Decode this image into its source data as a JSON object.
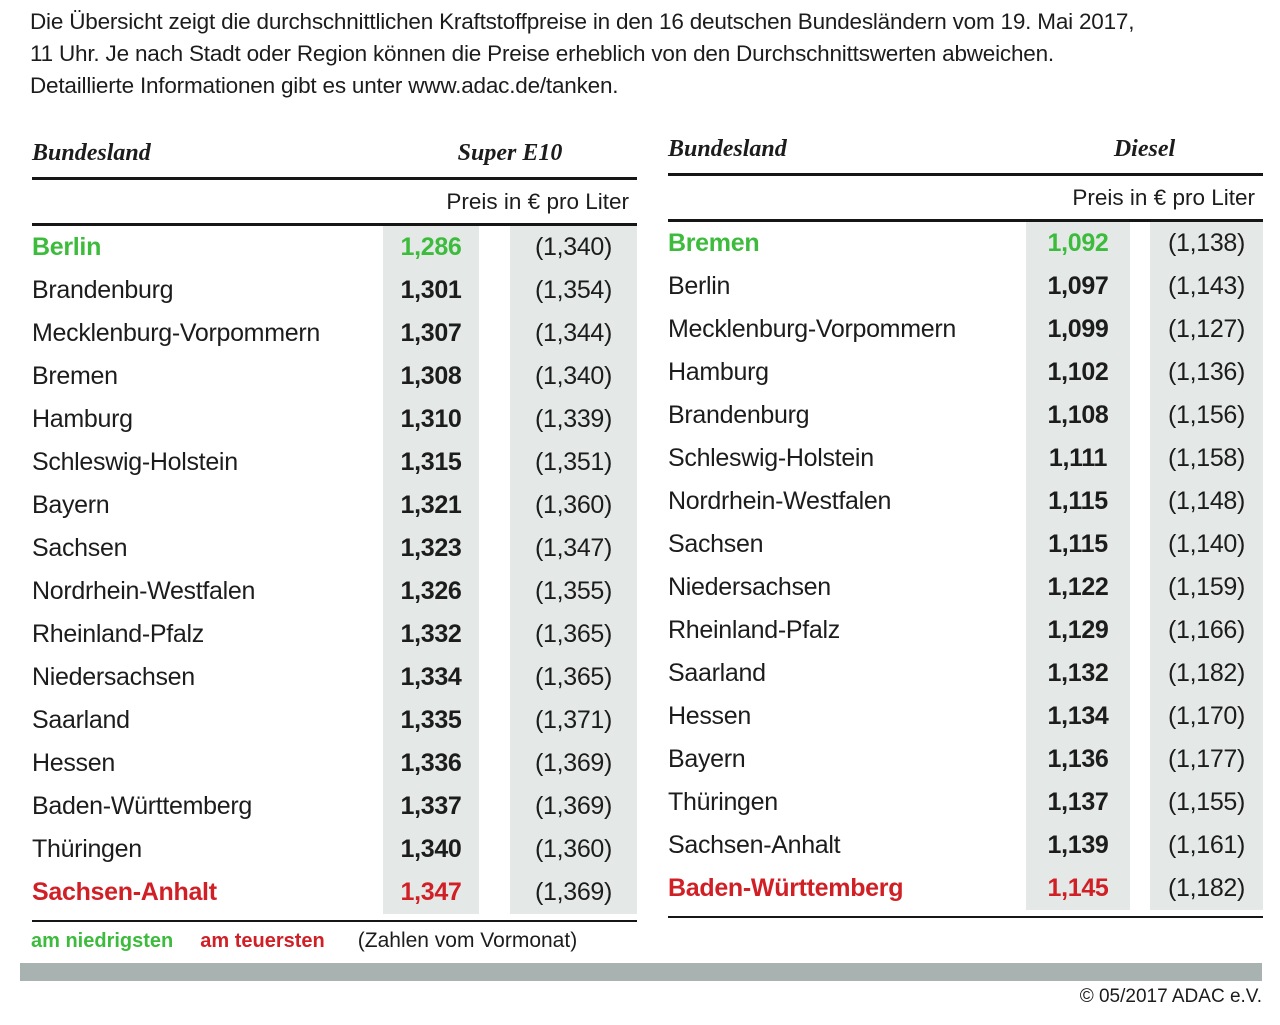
{
  "intro": {
    "lines": [
      "Die Übersicht zeigt die durchschnittlichen Kraftstoffpreise in den 16 deutschen Bundesländern vom 19. Mai 2017,",
      "11 Uhr. Je nach Stadt oder Region können die Preise erheblich von den Durchschnittswerten abweichen.",
      "Detaillierte Informationen gibt es unter www.adac.de/tanken."
    ]
  },
  "chart_data": [
    {
      "type": "table",
      "region_header": "Bundesland",
      "fuel_header": "Super E10",
      "unit_header": "Preis in € pro Liter",
      "rows": [
        {
          "name": "Berlin",
          "price": "1,286",
          "prev": "(1,340)",
          "highlight": "lowest"
        },
        {
          "name": "Brandenburg",
          "price": "1,301",
          "prev": "(1,354)",
          "highlight": null
        },
        {
          "name": "Mecklenburg-Vorpommern",
          "price": "1,307",
          "prev": "(1,344)",
          "highlight": null
        },
        {
          "name": "Bremen",
          "price": "1,308",
          "prev": "(1,340)",
          "highlight": null
        },
        {
          "name": "Hamburg",
          "price": "1,310",
          "prev": "(1,339)",
          "highlight": null
        },
        {
          "name": "Schleswig-Holstein",
          "price": "1,315",
          "prev": "(1,351)",
          "highlight": null
        },
        {
          "name": "Bayern",
          "price": "1,321",
          "prev": "(1,360)",
          "highlight": null
        },
        {
          "name": "Sachsen",
          "price": "1,323",
          "prev": "(1,347)",
          "highlight": null
        },
        {
          "name": "Nordrhein-Westfalen",
          "price": "1,326",
          "prev": "(1,355)",
          "highlight": null
        },
        {
          "name": "Rheinland-Pfalz",
          "price": "1,332",
          "prev": "(1,365)",
          "highlight": null
        },
        {
          "name": "Niedersachsen",
          "price": "1,334",
          "prev": "(1,365)",
          "highlight": null
        },
        {
          "name": "Saarland",
          "price": "1,335",
          "prev": "(1,371)",
          "highlight": null
        },
        {
          "name": "Hessen",
          "price": "1,336",
          "prev": "(1,369)",
          "highlight": null
        },
        {
          "name": "Baden-Württemberg",
          "price": "1,337",
          "prev": "(1,369)",
          "highlight": null
        },
        {
          "name": "Thüringen",
          "price": "1,340",
          "prev": "(1,360)",
          "highlight": null
        },
        {
          "name": "Sachsen-Anhalt",
          "price": "1,347",
          "prev": "(1,369)",
          "highlight": "highest"
        }
      ]
    },
    {
      "type": "table",
      "region_header": "Bundesland",
      "fuel_header": "Diesel",
      "unit_header": "Preis in € pro Liter",
      "rows": [
        {
          "name": "Bremen",
          "price": "1,092",
          "prev": "(1,138)",
          "highlight": "lowest"
        },
        {
          "name": "Berlin",
          "price": "1,097",
          "prev": "(1,143)",
          "highlight": null
        },
        {
          "name": "Mecklenburg-Vorpommern",
          "price": "1,099",
          "prev": "(1,127)",
          "highlight": null
        },
        {
          "name": "Hamburg",
          "price": "1,102",
          "prev": "(1,136)",
          "highlight": null
        },
        {
          "name": "Brandenburg",
          "price": "1,108",
          "prev": "(1,156)",
          "highlight": null
        },
        {
          "name": "Schleswig-Holstein",
          "price": "1,111",
          "prev": "(1,158)",
          "highlight": null
        },
        {
          "name": "Nordrhein-Westfalen",
          "price": "1,115",
          "prev": "(1,148)",
          "highlight": null
        },
        {
          "name": "Sachsen",
          "price": "1,115",
          "prev": "(1,140)",
          "highlight": null
        },
        {
          "name": "Niedersachsen",
          "price": "1,122",
          "prev": "(1,159)",
          "highlight": null
        },
        {
          "name": "Rheinland-Pfalz",
          "price": "1,129",
          "prev": "(1,166)",
          "highlight": null
        },
        {
          "name": "Saarland",
          "price": "1,132",
          "prev": "(1,182)",
          "highlight": null
        },
        {
          "name": "Hessen",
          "price": "1,134",
          "prev": "(1,170)",
          "highlight": null
        },
        {
          "name": "Bayern",
          "price": "1,136",
          "prev": "(1,177)",
          "highlight": null
        },
        {
          "name": "Thüringen",
          "price": "1,137",
          "prev": "(1,155)",
          "highlight": null
        },
        {
          "name": "Sachsen-Anhalt",
          "price": "1,139",
          "prev": "(1,161)",
          "highlight": null
        },
        {
          "name": "Baden-Württemberg",
          "price": "1,145",
          "prev": "(1,182)",
          "highlight": "highest"
        }
      ]
    }
  ],
  "legend": {
    "lowest_label": "am niedrigsten",
    "highest_label": "am teuersten",
    "note": "(Zahlen vom Vormonat)"
  },
  "footer": {
    "copyright": "© 05/2017 ADAC e.V."
  },
  "colors": {
    "green": "#3cbb3c",
    "red": "#d11f26",
    "cell_bg": "#e4e9e7",
    "divider_bar": "#a8b3b1",
    "ink": "#1c1c1c"
  }
}
